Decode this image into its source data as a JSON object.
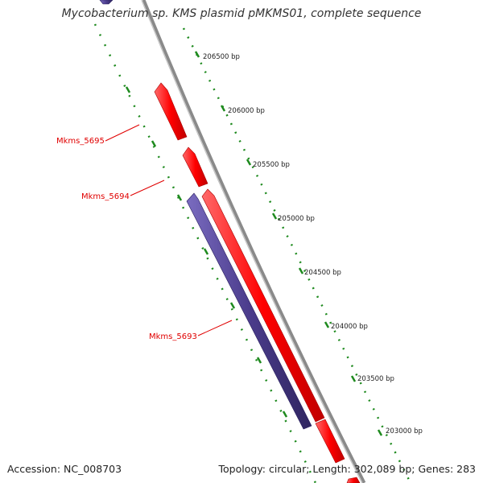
{
  "header": {
    "title": "Mycobacterium sp. KMS plasmid pMKMS01, complete sequence"
  },
  "footer": {
    "accession": "Accession: NC_008703",
    "topology": "Topology: circular; Length: 302,089 bp; Genes: 283"
  },
  "scale_ticks": [
    "206500 bp",
    "206000 bp",
    "205500 bp",
    "205000 bp",
    "204500 bp",
    "204000 bp",
    "203500 bp",
    "203000 bp"
  ],
  "genes": [
    {
      "name": "Mkms_5695",
      "strand": "forward"
    },
    {
      "name": "Mkms_5694",
      "strand": "forward"
    },
    {
      "name": "Mkms_5693",
      "strand": "reverse"
    }
  ],
  "colors": {
    "forward": "#ff0000",
    "reverse": "#4b3c8c",
    "backbone": "#888888",
    "scale": "#1e8a1e",
    "label": "#e00000"
  }
}
